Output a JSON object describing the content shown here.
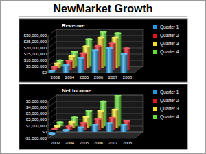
{
  "slide_title": "NewMarket Growth",
  "chart_data": [
    {
      "type": "bar",
      "title": "Revenue",
      "categories": [
        "2003",
        "2004",
        "2005",
        "2006",
        "2007",
        "2008"
      ],
      "series": [
        {
          "name": "Quarter 1",
          "color": "#1e9be0",
          "values": [
            1500000,
            6000000,
            12000000,
            18000000,
            20000000,
            15000000
          ]
        },
        {
          "name": "Quarter 2",
          "color": "#e0141e",
          "values": [
            3000000,
            8000000,
            14000000,
            20000000,
            22000000,
            18000000
          ]
        },
        {
          "name": "Quarter 3",
          "color": "#f0e020",
          "values": [
            4000000,
            10000000,
            18000000,
            25000000,
            25000000,
            null
          ]
        },
        {
          "name": "Quarter 4",
          "color": "#60e030",
          "values": [
            5000000,
            12000000,
            22000000,
            28000000,
            27000000,
            null
          ]
        }
      ],
      "ylim": [
        0,
        30000000
      ],
      "yticks": [
        {
          "value": 0,
          "label": "$0"
        },
        {
          "value": 5000000,
          "label": "$5,000,000"
        },
        {
          "value": 10000000,
          "label": "$10,000,000"
        },
        {
          "value": 15000000,
          "label": "$15,000,000"
        },
        {
          "value": 20000000,
          "label": "$20,000,000"
        },
        {
          "value": 25000000,
          "label": "$25,000,000"
        },
        {
          "value": 30000000,
          "label": "$30,000,000"
        }
      ],
      "grid": true,
      "legend": "right"
    },
    {
      "type": "bar",
      "title": "Net Income",
      "categories": [
        "2003",
        "2004",
        "2005",
        "2006",
        "2007",
        "2008"
      ],
      "series": [
        {
          "name": "Quarter 1",
          "color": "#1e9be0",
          "values": [
            -300000,
            300000,
            800000,
            1200000,
            1500000,
            1200000
          ]
        },
        {
          "name": "Quarter 2",
          "color": "#e0141e",
          "values": [
            200000,
            600000,
            1200000,
            1800000,
            2000000,
            1500000
          ]
        },
        {
          "name": "Quarter 3",
          "color": "#f0e020",
          "values": [
            400000,
            1000000,
            1800000,
            2800000,
            3000000,
            null
          ]
        },
        {
          "name": "Quarter 4",
          "color": "#60e030",
          "values": [
            600000,
            1400000,
            2500000,
            4000000,
            5000000,
            null
          ]
        }
      ],
      "ylim": [
        -1000000,
        5000000
      ],
      "yticks": [
        {
          "value": -1000000,
          "label": "-$1,000,000"
        },
        {
          "value": 0,
          "label": "$0"
        },
        {
          "value": 1000000,
          "label": "$1,000,000"
        },
        {
          "value": 2000000,
          "label": "$2,000,000"
        },
        {
          "value": 3000000,
          "label": "$3,000,000"
        },
        {
          "value": 4000000,
          "label": "$4,000,000"
        },
        {
          "value": 5000000,
          "label": "$5,000,000"
        }
      ],
      "grid": true,
      "legend": "right"
    }
  ]
}
